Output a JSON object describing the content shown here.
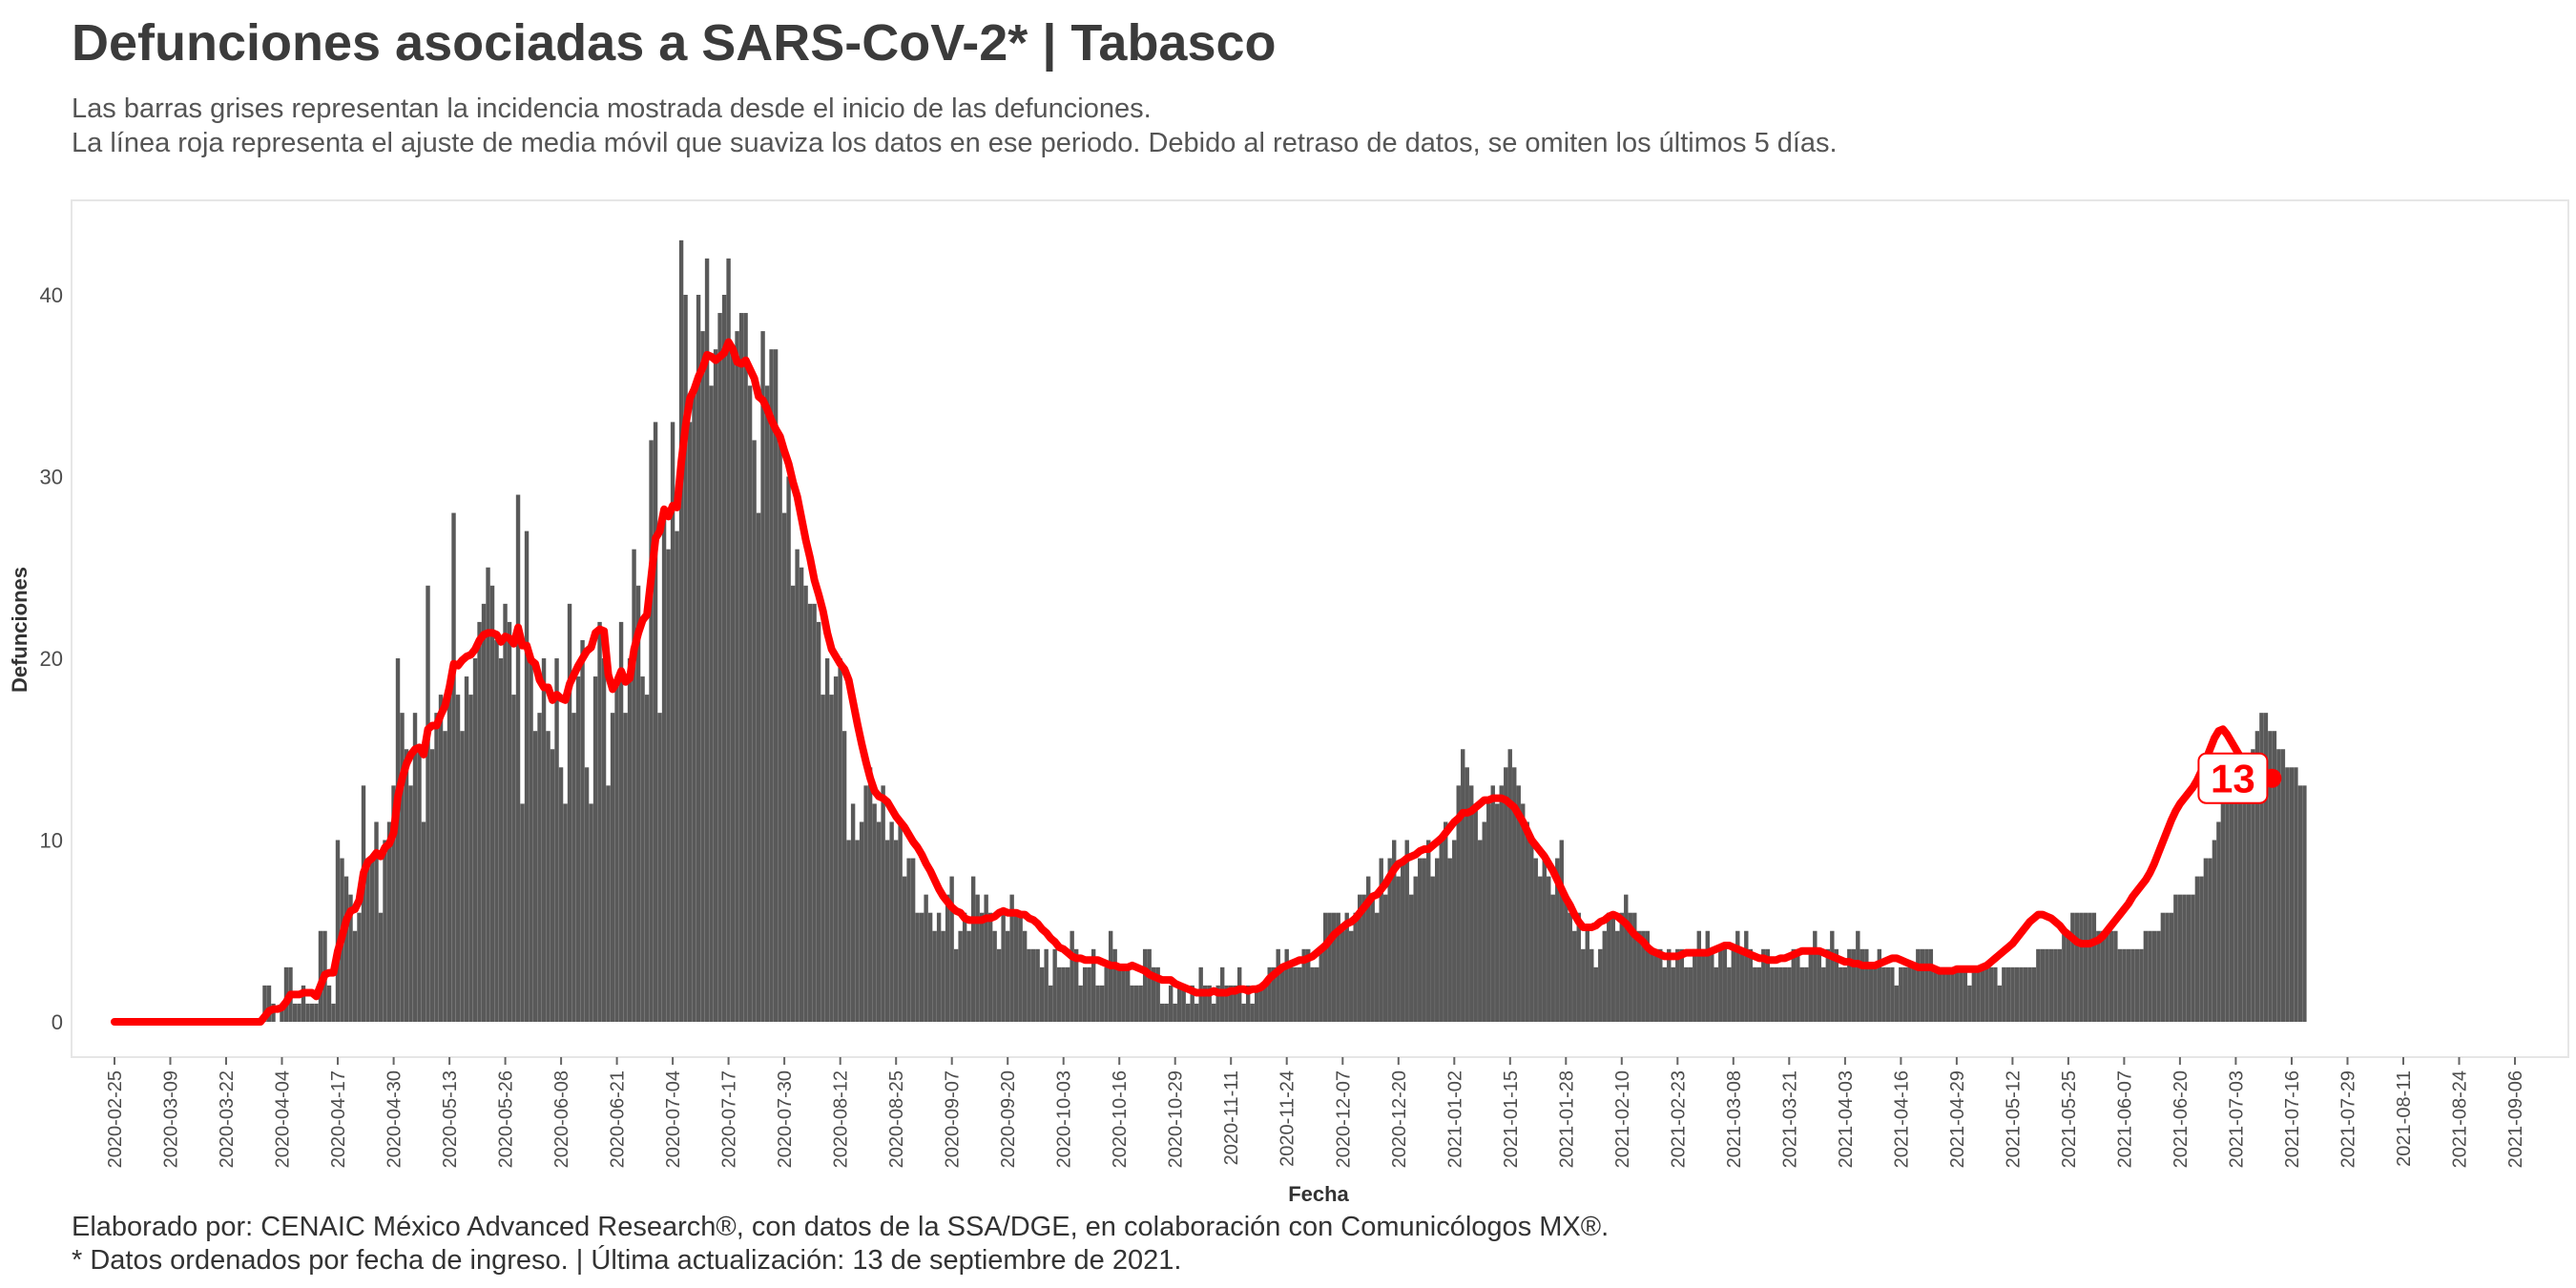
{
  "title": "Defunciones asociadas a SARS-CoV-2* | Tabasco",
  "subtitle_1": "Las barras grises representan la incidencia mostrada desde el inicio de las defunciones.",
  "subtitle_2": "La línea roja representa el ajuste de media móvil que suaviza los datos en ese periodo. Debido al retraso de datos, se omiten los últimos 5 días.",
  "caption_1": "Elaborado por: CENAIC México Advanced Research®, con datos de la SSA/DGE, en colaboración con Comunicólogos MX®.",
  "caption_2": "* Datos ordenados por fecha de ingreso. | Última actualización: 13 de septiembre de 2021.",
  "colors": {
    "bars": "#595959",
    "line": "#ff0000",
    "panel_border": "#e6e6e6"
  },
  "chart_data": {
    "type": "bar",
    "title": "Defunciones asociadas a SARS-CoV-2* | Tabasco",
    "xlabel": "Fecha",
    "ylabel": "Defunciones",
    "start_date": "2020-02-25",
    "end_date": "2021-09-08",
    "ylim": [
      -2,
      43
    ],
    "yticks": [
      0,
      10,
      20,
      30,
      40
    ],
    "xticks": [
      "2020-02-25",
      "2020-03-09",
      "2020-03-22",
      "2020-04-04",
      "2020-04-17",
      "2020-04-30",
      "2020-05-13",
      "2020-05-26",
      "2020-06-08",
      "2020-06-21",
      "2020-07-04",
      "2020-07-17",
      "2020-07-30",
      "2020-08-12",
      "2020-08-25",
      "2020-09-07",
      "2020-09-20",
      "2020-10-03",
      "2020-10-16",
      "2020-10-29",
      "2020-11-11",
      "2020-11-24",
      "2020-12-07",
      "2020-12-20",
      "2021-01-02",
      "2021-01-15",
      "2021-01-28",
      "2021-02-10",
      "2021-02-23",
      "2021-03-08",
      "2021-03-21",
      "2021-04-03",
      "2021-04-16",
      "2021-04-29",
      "2021-05-12",
      "2021-05-25",
      "2021-06-07",
      "2021-06-20",
      "2021-07-03",
      "2021-07-16",
      "2021-07-29",
      "2021-08-11",
      "2021-08-24",
      "2021-09-06"
    ],
    "grid": false,
    "legend": "none",
    "series": [
      {
        "values": [
          0,
          0,
          0,
          0,
          0,
          0,
          0,
          0,
          0,
          0,
          0,
          0,
          0,
          0,
          0,
          0,
          0,
          0,
          0,
          0,
          0,
          0,
          0,
          0,
          0,
          0,
          0,
          0,
          0,
          0,
          0,
          0,
          0,
          0,
          0,
          2,
          2,
          1,
          0,
          1,
          3,
          3,
          1,
          1,
          2,
          1,
          1,
          1,
          5,
          5,
          2,
          1,
          10,
          9,
          8,
          7,
          5,
          6,
          13,
          9,
          9,
          11,
          6,
          10,
          11,
          13,
          20,
          17,
          15,
          13,
          17,
          15,
          11,
          24,
          15,
          17,
          18,
          16,
          18,
          28,
          18,
          16,
          19,
          18,
          20,
          22,
          23,
          25,
          24,
          21,
          20,
          23,
          22,
          18,
          29,
          12,
          27,
          20,
          16,
          17,
          20,
          16,
          15,
          20,
          14,
          12,
          23,
          17,
          19,
          21,
          14,
          12,
          19,
          22,
          20,
          13,
          17,
          19,
          22,
          17,
          20,
          26,
          24,
          19,
          18,
          32,
          33,
          17,
          28,
          26,
          33,
          27,
          43,
          40,
          33,
          35,
          40,
          38,
          42,
          35,
          37,
          39,
          40,
          42,
          37,
          38,
          39,
          39,
          35,
          32,
          28,
          38,
          35,
          37,
          37,
          32,
          28,
          30,
          24,
          26,
          25,
          24,
          23,
          23,
          22,
          18,
          20,
          18,
          19,
          20,
          16,
          10,
          12,
          10,
          11,
          13,
          14,
          12,
          11,
          13,
          10,
          11,
          10,
          11,
          8,
          9,
          9,
          6,
          6,
          7,
          6,
          5,
          6,
          5,
          7,
          8,
          4,
          5,
          6,
          5,
          8,
          7,
          6,
          7,
          6,
          5,
          4,
          6,
          5,
          7,
          6,
          6,
          5,
          4,
          4,
          4,
          3,
          4,
          2,
          4,
          3,
          3,
          3,
          5,
          4,
          2,
          3,
          3,
          4,
          2,
          2,
          3,
          5,
          4,
          3,
          3,
          3,
          2,
          2,
          2,
          4,
          4,
          3,
          3,
          1,
          1,
          2,
          1,
          2,
          2,
          1,
          2,
          1,
          3,
          2,
          2,
          1,
          2,
          3,
          2,
          2,
          2,
          3,
          1,
          2,
          1,
          2,
          2,
          2,
          3,
          3,
          4,
          3,
          4,
          3,
          3,
          3,
          4,
          4,
          3,
          3,
          4,
          6,
          6,
          6,
          6,
          5,
          6,
          5,
          6,
          7,
          7,
          8,
          7,
          6,
          9,
          7,
          9,
          10,
          8,
          9,
          10,
          7,
          8,
          9,
          9,
          10,
          8,
          9,
          10,
          11,
          9,
          10,
          13,
          15,
          14,
          13,
          12,
          10,
          11,
          12,
          13,
          12,
          13,
          14,
          15,
          14,
          13,
          12,
          11,
          10,
          9,
          8,
          9,
          8,
          7,
          9,
          10,
          7,
          6,
          5,
          6,
          4,
          5,
          4,
          3,
          4,
          5,
          6,
          6,
          5,
          6,
          7,
          6,
          6,
          5,
          5,
          5,
          4,
          4,
          4,
          3,
          4,
          3,
          4,
          4,
          3,
          3,
          4,
          5,
          4,
          5,
          4,
          3,
          4,
          4,
          3,
          4,
          5,
          4,
          5,
          4,
          3,
          3,
          4,
          4,
          3,
          3,
          3,
          3,
          3,
          4,
          4,
          3,
          3,
          4,
          5,
          4,
          3,
          4,
          5,
          4,
          3,
          3,
          4,
          4,
          5,
          4,
          4,
          3,
          3,
          4,
          3,
          3,
          3,
          2,
          3,
          3,
          3,
          3,
          4,
          4,
          4,
          4,
          3,
          3,
          3,
          3,
          3,
          3,
          3,
          3,
          2,
          3,
          3,
          3,
          3,
          3,
          3,
          2,
          3,
          3,
          3,
          3,
          3,
          3,
          3,
          3,
          4,
          4,
          4,
          4,
          4,
          4,
          5,
          5,
          6,
          6,
          6,
          6,
          6,
          6,
          5,
          5,
          5,
          5,
          5,
          4,
          4,
          4,
          4,
          4,
          4,
          5,
          5,
          5,
          5,
          6,
          6,
          6,
          7,
          7,
          7,
          7,
          7,
          8,
          8,
          9,
          9,
          10,
          11,
          12,
          12,
          12,
          12,
          12,
          13,
          14,
          15,
          16,
          17,
          17,
          16,
          16,
          15,
          15,
          14,
          14,
          14,
          13,
          13
        ]
      },
      {
        "values": [
          0,
          0,
          0,
          0,
          0,
          0,
          0,
          0,
          0,
          0,
          0,
          0,
          0,
          0,
          0,
          0,
          0,
          0,
          0,
          0,
          0,
          0,
          0,
          0,
          0,
          0,
          0,
          0,
          0,
          0,
          0,
          0,
          0,
          0,
          0,
          0.3,
          0.6,
          0.7,
          0.7,
          0.8,
          1.1,
          1.5,
          1.5,
          1.5,
          1.6,
          1.6,
          1.6,
          1.4,
          2,
          2.6,
          2.7,
          2.7,
          3.9,
          4.7,
          5.6,
          6.1,
          6.2,
          6.7,
          8.2,
          8.8,
          9,
          9.3,
          9.1,
          9.6,
          9.8,
          10.4,
          12.4,
          13.4,
          14.2,
          14.7,
          15,
          15.1,
          14.7,
          16.1,
          16.3,
          16.3,
          16.9,
          17.4,
          18.4,
          19.7,
          19.6,
          19.9,
          20.1,
          20.2,
          20.5,
          21,
          21.3,
          21.4,
          21.4,
          21.3,
          20.9,
          21.2,
          21.1,
          20.8,
          21.7,
          20.7,
          20.7,
          19.9,
          19.7,
          18.8,
          18.4,
          18.4,
          17.7,
          18,
          17.8,
          17.7,
          18.6,
          19.1,
          19.6,
          20,
          20.4,
          20.6,
          21.4,
          21.6,
          21.5,
          19.1,
          18.3,
          18.7,
          19.3,
          18.7,
          18.9,
          20.5,
          21.4,
          22.1,
          22.4,
          24.5,
          26.6,
          27,
          28.2,
          27.8,
          28.4,
          28.3,
          30.8,
          32.8,
          34.3,
          34.8,
          35.5,
          36,
          36.7,
          36.6,
          36.4,
          36.6,
          36.8,
          37.4,
          37,
          36.3,
          36.2,
          36.4,
          35.9,
          35.4,
          34.4,
          34.2,
          33.7,
          33.1,
          32.6,
          32.2,
          31.4,
          30.7,
          29.7,
          28.9,
          27.7,
          26.5,
          25.5,
          24.3,
          23.5,
          22.6,
          21.4,
          20.5,
          20.1,
          19.7,
          19.4,
          18.8,
          17.6,
          16.4,
          15.3,
          14.3,
          13.4,
          12.7,
          12.4,
          12.3,
          12.1,
          11.7,
          11.3,
          11,
          10.7,
          10.3,
          9.9,
          9.6,
          9.2,
          8.7,
          8.3,
          7.8,
          7.3,
          6.9,
          6.6,
          6.3,
          6.1,
          6,
          5.7,
          5.6,
          5.6,
          5.6,
          5.6,
          5.7,
          5.7,
          5.8,
          6,
          6.1,
          6,
          6,
          6,
          5.9,
          5.9,
          5.7,
          5.6,
          5.4,
          5.1,
          4.9,
          4.6,
          4.4,
          4.1,
          4,
          3.8,
          3.6,
          3.5,
          3.5,
          3.4,
          3.4,
          3.4,
          3.4,
          3.3,
          3.2,
          3.1,
          3.1,
          3,
          3,
          3,
          3.1,
          3,
          2.9,
          2.8,
          2.6,
          2.5,
          2.4,
          2.3,
          2.3,
          2.3,
          2.1,
          2,
          1.9,
          1.8,
          1.7,
          1.6,
          1.6,
          1.6,
          1.6,
          1.7,
          1.6,
          1.6,
          1.6,
          1.7,
          1.7,
          1.8,
          1.8,
          1.7,
          1.8,
          1.8,
          1.9,
          2.1,
          2.4,
          2.6,
          2.8,
          3,
          3.1,
          3.2,
          3.3,
          3.4,
          3.4,
          3.5,
          3.6,
          3.8,
          4,
          4.2,
          4.5,
          4.8,
          5,
          5.2,
          5.4,
          5.5,
          5.7,
          6,
          6.3,
          6.6,
          6.9,
          7,
          7.3,
          7.6,
          8,
          8.4,
          8.7,
          8.8,
          9,
          9.1,
          9.2,
          9.4,
          9.5,
          9.5,
          9.7,
          9.9,
          10.1,
          10.4,
          10.7,
          11,
          11.2,
          11.5,
          11.5,
          11.6,
          11.8,
          12,
          12.2,
          12.2,
          12.3,
          12.3,
          12.3,
          12.2,
          12,
          11.8,
          11.4,
          11,
          10.5,
          10,
          9.7,
          9.4,
          9.1,
          8.7,
          8.3,
          7.8,
          7.3,
          6.8,
          6.4,
          5.9,
          5.5,
          5.2,
          5.2,
          5.2,
          5.3,
          5.5,
          5.6,
          5.8,
          5.9,
          5.8,
          5.6,
          5.4,
          5.1,
          4.8,
          4.6,
          4.4,
          4.1,
          3.9,
          3.8,
          3.7,
          3.6,
          3.6,
          3.6,
          3.6,
          3.7,
          3.8,
          3.8,
          3.8,
          3.8,
          3.8,
          3.8,
          3.9,
          4,
          4.1,
          4.2,
          4.2,
          4.1,
          4,
          3.9,
          3.8,
          3.7,
          3.6,
          3.5,
          3.5,
          3.4,
          3.4,
          3.4,
          3.5,
          3.5,
          3.6,
          3.7,
          3.8,
          3.9,
          3.9,
          3.9,
          3.9,
          3.9,
          3.8,
          3.7,
          3.6,
          3.5,
          3.4,
          3.3,
          3.3,
          3.2,
          3.2,
          3.1,
          3.1,
          3.1,
          3.1,
          3.2,
          3.3,
          3.4,
          3.5,
          3.5,
          3.4,
          3.3,
          3.2,
          3.1,
          3,
          3,
          3,
          3,
          2.9,
          2.8,
          2.8,
          2.8,
          2.8,
          2.9,
          2.9,
          2.9,
          2.9,
          2.9,
          2.9,
          3,
          3.1,
          3.3,
          3.5,
          3.7,
          3.9,
          4.1,
          4.3,
          4.6,
          4.9,
          5.2,
          5.5,
          5.7,
          5.9,
          5.9,
          5.8,
          5.7,
          5.5,
          5.3,
          5,
          4.8,
          4.6,
          4.4,
          4.3,
          4.3,
          4.3,
          4.4,
          4.5,
          4.7,
          5,
          5.3,
          5.6,
          5.9,
          6.2,
          6.5,
          6.9,
          7.2,
          7.5,
          7.8,
          8.2,
          8.7,
          9.3,
          9.9,
          10.5,
          11.1,
          11.6,
          12,
          12.3,
          12.6,
          12.9,
          13.3,
          13.8,
          14.4,
          15,
          15.6,
          16,
          16.1,
          15.8,
          15.4,
          15,
          14.6,
          14.2,
          13.9,
          13.7,
          13.5,
          13.4
        ]
      }
    ],
    "label_value": "13"
  }
}
